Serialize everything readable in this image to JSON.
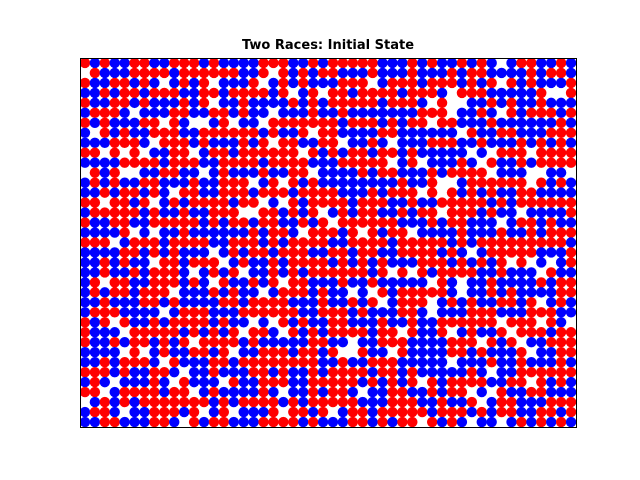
{
  "chart_data": {
    "type": "scatter",
    "title": "Two Races: Initial State",
    "xlabel": "",
    "ylabel": "",
    "grid": false,
    "axes_ticks": false,
    "grid_size": {
      "columns": 50,
      "rows": 37
    },
    "occupancy_fraction_approx": 0.9,
    "series": [
      {
        "color": "#ff0000",
        "share_approx": 0.5
      },
      {
        "color": "#0000ff",
        "share_approx": 0.5
      }
    ],
    "empty_color": "#ffffff",
    "seed": 1337
  }
}
